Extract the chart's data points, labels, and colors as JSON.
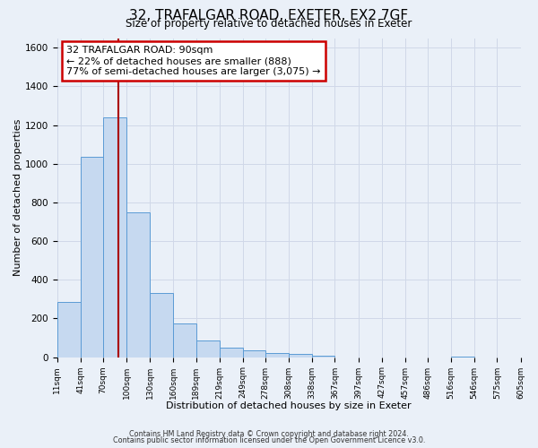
{
  "title": "32, TRAFALGAR ROAD, EXETER, EX2 7GF",
  "subtitle": "Size of property relative to detached houses in Exeter",
  "xlabel": "Distribution of detached houses by size in Exeter",
  "ylabel": "Number of detached properties",
  "bar_edges": [
    11,
    41,
    70,
    100,
    130,
    160,
    189,
    219,
    249,
    278,
    308,
    338,
    367,
    397,
    427,
    457,
    486,
    516,
    546,
    575,
    605
  ],
  "bar_heights": [
    285,
    1035,
    1240,
    750,
    330,
    175,
    85,
    50,
    35,
    20,
    15,
    8,
    0,
    0,
    0,
    0,
    0,
    5,
    0,
    0
  ],
  "bar_color": "#c6d9f0",
  "bar_edge_color": "#5b9bd5",
  "property_line_x": 90,
  "property_line_color": "#aa0000",
  "ylim": [
    0,
    1650
  ],
  "yticks": [
    0,
    200,
    400,
    600,
    800,
    1000,
    1200,
    1400,
    1600
  ],
  "x_tick_labels": [
    "11sqm",
    "41sqm",
    "70sqm",
    "100sqm",
    "130sqm",
    "160sqm",
    "189sqm",
    "219sqm",
    "249sqm",
    "278sqm",
    "308sqm",
    "338sqm",
    "367sqm",
    "397sqm",
    "427sqm",
    "457sqm",
    "486sqm",
    "516sqm",
    "546sqm",
    "575sqm",
    "605sqm"
  ],
  "annotation_line1": "32 TRAFALGAR ROAD: 90sqm",
  "annotation_line2": "← 22% of detached houses are smaller (888)",
  "annotation_line3": "77% of semi-detached houses are larger (3,075) →",
  "annotation_box_color": "#cc0000",
  "footer_line1": "Contains HM Land Registry data © Crown copyright and database right 2024.",
  "footer_line2": "Contains public sector information licensed under the Open Government Licence v3.0.",
  "grid_color": "#d0d8e8",
  "background_color": "#eaf0f8"
}
